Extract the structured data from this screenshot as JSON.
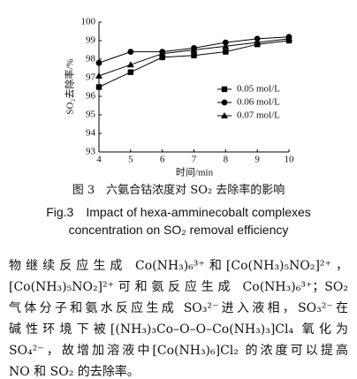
{
  "chart_data": {
    "type": "line",
    "y_label": "SO₂去除率/%",
    "x_label": "时间/min",
    "x": [
      4,
      5,
      6,
      7,
      8,
      9,
      10
    ],
    "series": [
      {
        "name": "0.05 mol/L",
        "color": "#000000",
        "marker": "square",
        "values": [
          96.5,
          97.3,
          98.1,
          98.2,
          98.4,
          98.8,
          99.0
        ]
      },
      {
        "name": "0.06 mol/L",
        "color": "#000000",
        "marker": "circle",
        "values": [
          97.8,
          98.4,
          98.4,
          98.6,
          98.9,
          99.1,
          99.2
        ]
      },
      {
        "name": "0.07 mol/L",
        "color": "#000000",
        "marker": "triangle",
        "values": [
          97.1,
          97.7,
          98.3,
          98.5,
          98.7,
          98.9,
          99.1
        ]
      }
    ],
    "xlim": [
      4,
      10
    ],
    "xticks": [
      4,
      5,
      6,
      7,
      8,
      9,
      10
    ],
    "ylim": [
      93,
      100
    ],
    "yticks": [
      93,
      94,
      95,
      96,
      97,
      98,
      99,
      100
    ],
    "grid": false,
    "legend": "right"
  },
  "caption": {
    "cn": "图 3　六氨合钴浓度对 SO₂ 去除率的影响",
    "en_lines": [
      "Fig.3　Impact of hexa-amminecobalt complexes",
      "concentration on SO₂ removal efficiency"
    ]
  },
  "body": {
    "lines": [
      "物继续反应生成 Co(NH₃)₆³⁺和[Co(NH₃)₅NO₂]²⁺，",
      "[Co(NH₃)₅NO₂]²⁺可和氨反应生成 Co(NH₃)₆³⁺；SO₂",
      "气体分子和氨水反应生成 SO₃²⁻进入液相，SO₃²⁻在",
      "碱性环境下被[(NH₃)₃Co–O–O–Co(NH₃)₃]Cl₄ 氧化为",
      "SO₄²⁻，故增加溶液中[Co(NH₃)₆]Cl₂ 的浓度可以提高",
      "NO 和 SO₂ 的去除率。"
    ]
  }
}
